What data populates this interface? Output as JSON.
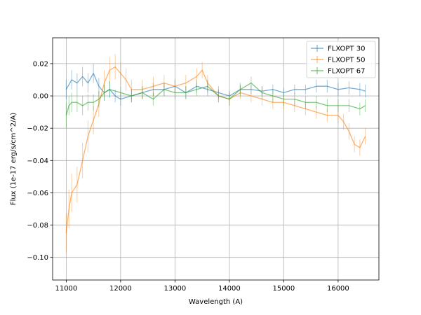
{
  "chart_data": {
    "type": "line",
    "xlabel": "Wavelength (A)",
    "ylabel": "Flux (1e-17 erg/s/cm^2/A)",
    "xlim": [
      10750,
      16750
    ],
    "ylim": [
      -0.114,
      0.036
    ],
    "xticks": [
      11000,
      12000,
      13000,
      14000,
      15000,
      16000
    ],
    "yticks": [
      -0.1,
      -0.08,
      -0.06,
      -0.04,
      -0.02,
      0.0,
      0.02
    ],
    "ytick_labels": [
      "−0.10",
      "−0.08",
      "−0.06",
      "−0.04",
      "−0.02",
      "0.00",
      "0.02"
    ],
    "grid": true,
    "legend_position": "top-right",
    "series": [
      {
        "name": "FLXOPT 30",
        "color": "#1f77b4",
        "x": [
          11000,
          11100,
          11200,
          11300,
          11400,
          11500,
          11600,
          11700,
          11800,
          11900,
          12000,
          12200,
          12400,
          12600,
          12800,
          13000,
          13200,
          13400,
          13600,
          13800,
          14000,
          14200,
          14400,
          14600,
          14800,
          15000,
          15200,
          15400,
          15600,
          15800,
          16000,
          16200,
          16400,
          16500
        ],
        "y": [
          0.004,
          0.01,
          0.008,
          0.012,
          0.008,
          0.014,
          0.006,
          0.002,
          0.004,
          0.0,
          -0.002,
          0.0,
          0.002,
          0.004,
          0.004,
          0.006,
          0.002,
          0.006,
          0.004,
          0.002,
          0.0,
          0.004,
          0.004,
          0.003,
          0.004,
          0.002,
          0.004,
          0.004,
          0.006,
          0.006,
          0.004,
          0.005,
          0.004,
          0.003
        ],
        "err": [
          0.006,
          0.006,
          0.006,
          0.006,
          0.006,
          0.006,
          0.005,
          0.005,
          0.005,
          0.004,
          0.004,
          0.004,
          0.004,
          0.004,
          0.004,
          0.004,
          0.004,
          0.004,
          0.004,
          0.004,
          0.003,
          0.003,
          0.003,
          0.003,
          0.003,
          0.003,
          0.003,
          0.003,
          0.004,
          0.004,
          0.004,
          0.004,
          0.004,
          0.004
        ]
      },
      {
        "name": "FLXOPT 50",
        "color": "#ff7f0e",
        "x": [
          11000,
          11050,
          11100,
          11200,
          11300,
          11400,
          11500,
          11600,
          11700,
          11800,
          11900,
          12000,
          12100,
          12200,
          12400,
          12600,
          12800,
          13000,
          13200,
          13400,
          13500,
          13600,
          13800,
          14000,
          14200,
          14400,
          14600,
          14800,
          15000,
          15200,
          15400,
          15600,
          15800,
          16000,
          16100,
          16200,
          16300,
          16400,
          16500
        ],
        "y": [
          -0.085,
          -0.07,
          -0.06,
          -0.055,
          -0.04,
          -0.025,
          -0.015,
          -0.005,
          0.008,
          0.016,
          0.018,
          0.014,
          0.01,
          0.004,
          0.004,
          0.006,
          0.008,
          0.006,
          0.008,
          0.012,
          0.016,
          0.008,
          0.0,
          -0.002,
          0.002,
          0.0,
          -0.002,
          -0.004,
          -0.004,
          -0.006,
          -0.008,
          -0.01,
          -0.012,
          -0.012,
          -0.016,
          -0.022,
          -0.03,
          -0.032,
          -0.025
        ],
        "err": [
          0.012,
          0.012,
          0.012,
          0.011,
          0.011,
          0.01,
          0.009,
          0.008,
          0.008,
          0.008,
          0.008,
          0.007,
          0.007,
          0.006,
          0.006,
          0.006,
          0.005,
          0.005,
          0.005,
          0.005,
          0.005,
          0.005,
          0.004,
          0.004,
          0.004,
          0.004,
          0.004,
          0.004,
          0.004,
          0.004,
          0.004,
          0.004,
          0.004,
          0.005,
          0.005,
          0.005,
          0.005,
          0.005,
          0.005
        ]
      },
      {
        "name": "FLXOPT 67",
        "color": "#2ca02c",
        "x": [
          11000,
          11050,
          11100,
          11200,
          11300,
          11400,
          11500,
          11600,
          11700,
          11800,
          12000,
          12200,
          12400,
          12600,
          12800,
          13000,
          13200,
          13400,
          13600,
          13800,
          14000,
          14200,
          14400,
          14600,
          14800,
          15000,
          15200,
          15400,
          15600,
          15800,
          16000,
          16200,
          16400,
          16500
        ],
        "y": [
          -0.012,
          -0.006,
          -0.004,
          -0.004,
          -0.006,
          -0.004,
          -0.004,
          -0.002,
          0.002,
          0.004,
          0.002,
          0.0,
          0.002,
          -0.002,
          0.004,
          0.002,
          0.002,
          0.004,
          0.006,
          0.0,
          -0.002,
          0.004,
          0.008,
          0.002,
          0.0,
          -0.002,
          -0.002,
          -0.004,
          -0.004,
          -0.006,
          -0.006,
          -0.006,
          -0.008,
          -0.006
        ],
        "err": [
          0.008,
          0.006,
          0.006,
          0.006,
          0.006,
          0.005,
          0.005,
          0.005,
          0.005,
          0.005,
          0.004,
          0.004,
          0.004,
          0.004,
          0.004,
          0.004,
          0.004,
          0.004,
          0.004,
          0.004,
          0.004,
          0.004,
          0.004,
          0.004,
          0.004,
          0.004,
          0.004,
          0.004,
          0.004,
          0.004,
          0.004,
          0.004,
          0.004,
          0.004
        ]
      }
    ]
  }
}
